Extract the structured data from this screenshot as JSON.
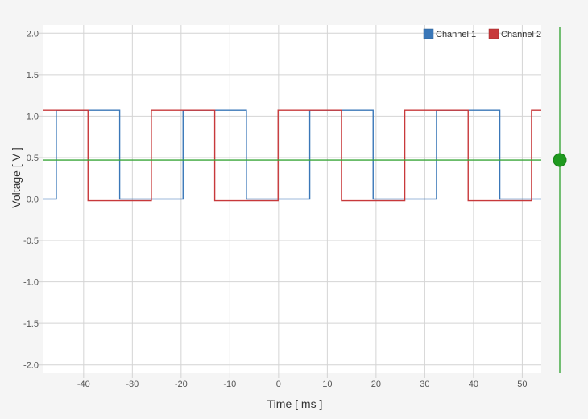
{
  "chart_data": {
    "type": "line",
    "xlabel": "Time [ ms ]",
    "ylabel": "Voltage [ V ]",
    "xlim": [
      -48.4,
      53.9
    ],
    "ylim": [
      -2.1,
      2.1
    ],
    "x_ticks": [
      -40,
      -30,
      -20,
      -10,
      0,
      10,
      20,
      30,
      40,
      50
    ],
    "y_ticks": [
      2.0,
      1.5,
      1.0,
      0.5,
      0.0,
      -0.5,
      -1.0,
      -1.5,
      -2.0
    ],
    "y_tick_labels": [
      "2.0",
      "1.5",
      "1.0",
      "0.5",
      "0.0",
      "-0.5",
      "-1.0",
      "-1.5",
      "-2.0"
    ],
    "grid": true,
    "legend_position": "top-right",
    "series": [
      {
        "name": "Channel 1",
        "color": "#3a77b8",
        "high": 1.07,
        "low": 0.0,
        "start_x": -48.4,
        "start_level": "low",
        "transition_x": [
          -45.6,
          -32.6,
          -19.6,
          -6.6,
          6.4,
          19.4,
          32.4,
          45.4
        ]
      },
      {
        "name": "Channel 2",
        "color": "#c8393b",
        "high": 1.07,
        "low": -0.02,
        "start_x": -48.4,
        "start_level": "high",
        "transition_x": [
          -39.1,
          -26.1,
          -13.1,
          -0.1,
          12.9,
          25.9,
          38.9,
          51.9
        ]
      }
    ],
    "trigger_level": 0.47,
    "trigger_color": "#3aa63a"
  }
}
